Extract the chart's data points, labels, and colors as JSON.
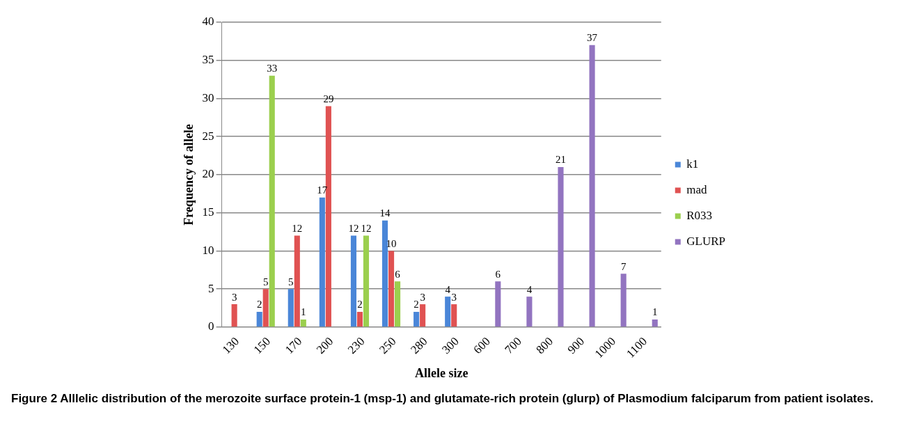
{
  "chart_data": {
    "type": "bar",
    "xlabel": "Allele size",
    "ylabel": "Frequency of allele",
    "categories": [
      "130",
      "150",
      "170",
      "200",
      "230",
      "250",
      "280",
      "300",
      "600",
      "700",
      "800",
      "900",
      "1000",
      "1100"
    ],
    "series": [
      {
        "name": "k1",
        "color": "#4a86d8",
        "values": [
          null,
          2,
          5,
          17,
          12,
          14,
          2,
          4,
          null,
          null,
          null,
          null,
          null,
          null
        ]
      },
      {
        "name": "mad",
        "color": "#e05252",
        "values": [
          3,
          5,
          12,
          29,
          2,
          10,
          3,
          3,
          null,
          null,
          null,
          null,
          null,
          null
        ]
      },
      {
        "name": "R033",
        "color": "#9bcf4e",
        "values": [
          null,
          33,
          1,
          null,
          12,
          6,
          null,
          null,
          null,
          null,
          null,
          null,
          null,
          null
        ]
      },
      {
        "name": "GLURP",
        "color": "#9274c0",
        "values": [
          null,
          null,
          null,
          null,
          null,
          null,
          null,
          null,
          6,
          4,
          21,
          37,
          7,
          1
        ]
      }
    ],
    "ylim": [
      0,
      40
    ],
    "yticks": [
      0,
      5,
      10,
      15,
      20,
      25,
      30,
      35,
      40
    ],
    "grid": "y",
    "legend": "right",
    "data_labels": true,
    "annotations": [
      "Figure 2 Alllelic distribution of the merozoite surface protein-1 (msp-1) and glutamate-rich protein (glurp) of Plasmodium falciparum from patient isolates."
    ]
  }
}
